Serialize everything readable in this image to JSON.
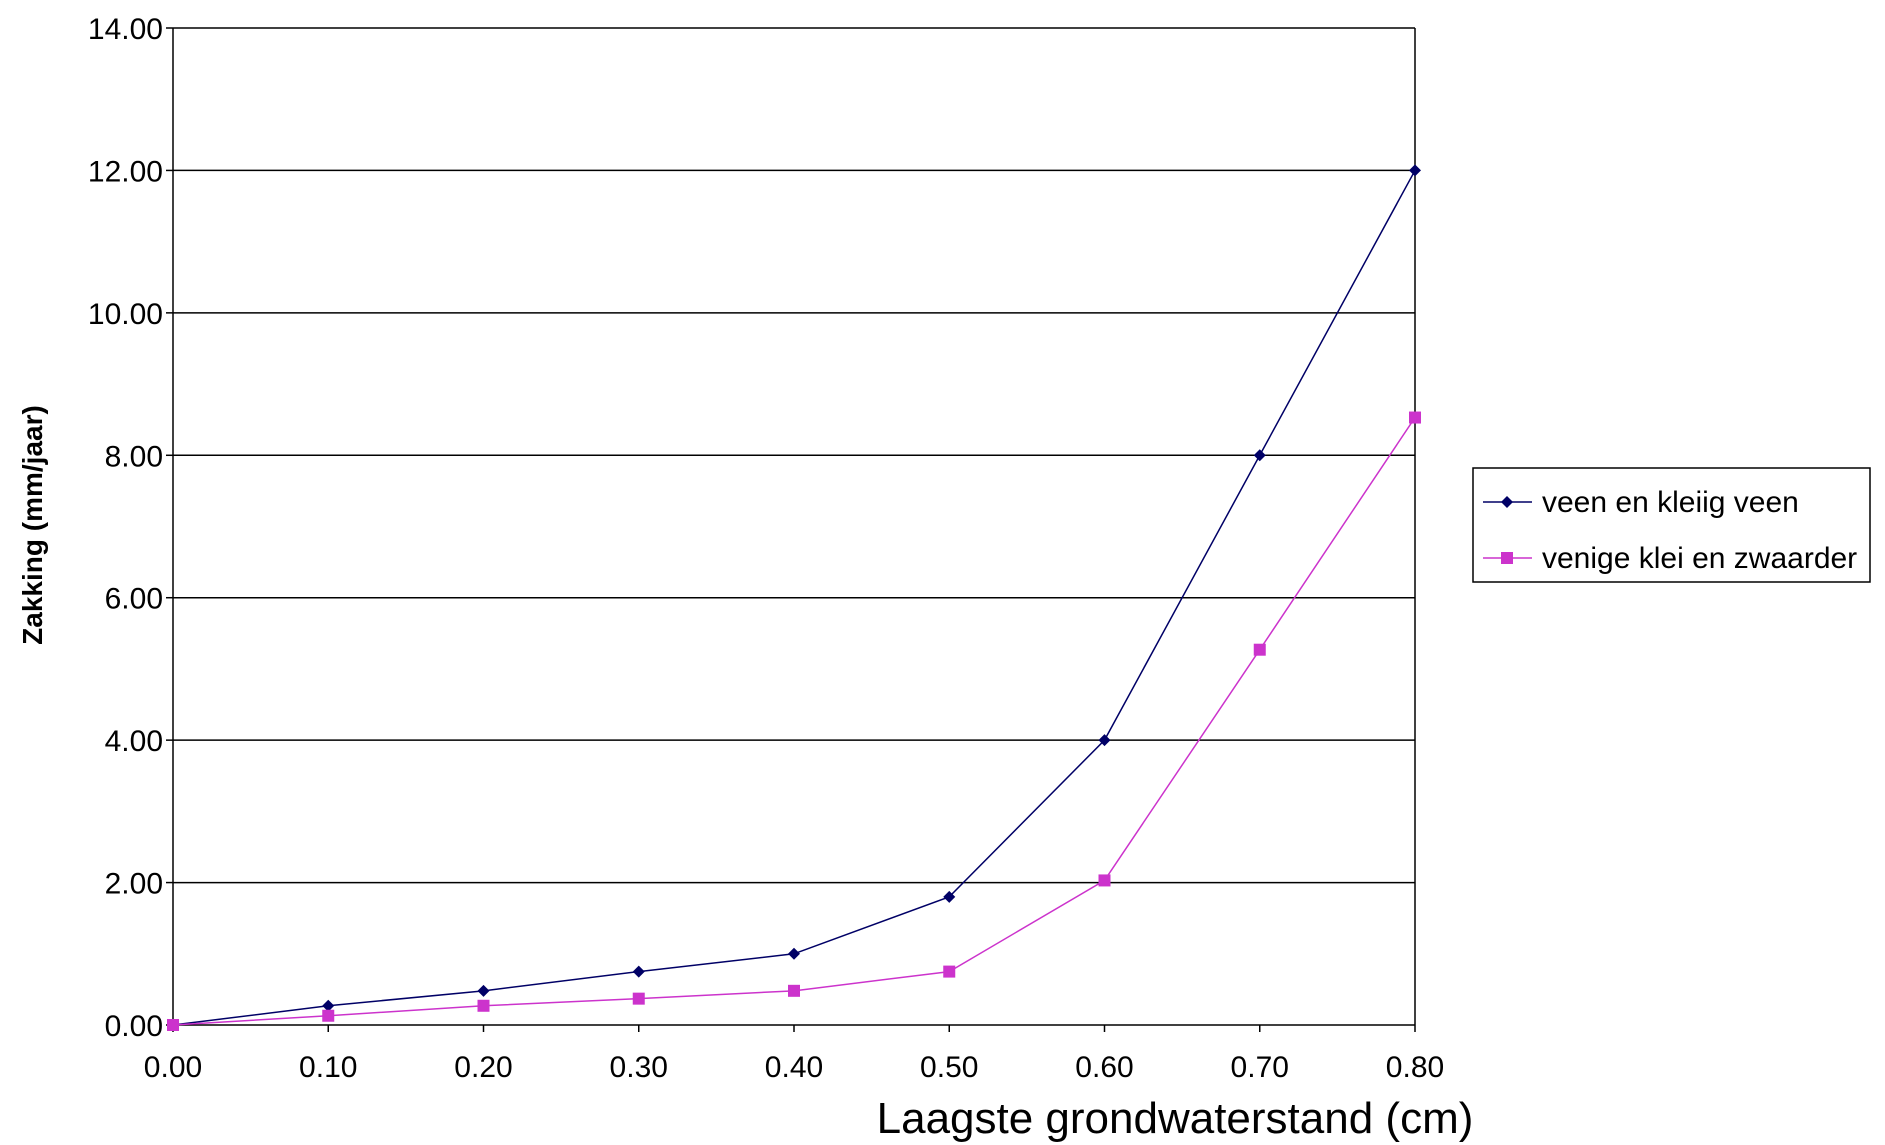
{
  "chart_data": {
    "type": "line",
    "title": "",
    "xlabel": "Laagste grondwaterstand (cm)",
    "ylabel": "Zakking (mm/jaar)",
    "x": [
      0.0,
      0.1,
      0.2,
      0.3,
      0.4,
      0.5,
      0.6,
      0.7,
      0.8
    ],
    "x_tick_labels": [
      "0.00",
      "0.10",
      "0.20",
      "0.30",
      "0.40",
      "0.50",
      "0.60",
      "0.70",
      "0.80"
    ],
    "y_tick_labels": [
      "0.00",
      "2.00",
      "4.00",
      "6.00",
      "8.00",
      "10.00",
      "12.00",
      "14.00"
    ],
    "y_ticks": [
      0,
      2,
      4,
      6,
      8,
      10,
      12,
      14
    ],
    "xlim": [
      0.0,
      0.8
    ],
    "ylim": [
      0,
      14
    ],
    "grid": "horizontal",
    "legend_position": "right",
    "series": [
      {
        "name": "veen en kleiig veen",
        "color": "#000066",
        "marker": "diamond",
        "values": [
          0.0,
          0.27,
          0.48,
          0.75,
          1.0,
          1.8,
          4.0,
          8.0,
          12.0
        ]
      },
      {
        "name": "venige klei en zwaarder",
        "color": "#cc33cc",
        "marker": "square",
        "values": [
          0.0,
          0.13,
          0.27,
          0.37,
          0.48,
          0.75,
          2.03,
          5.27,
          8.53
        ]
      }
    ]
  }
}
